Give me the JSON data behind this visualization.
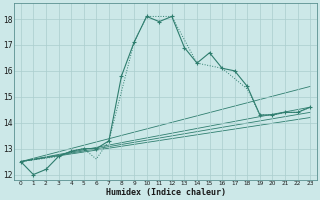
{
  "xlabel": "Humidex (Indice chaleur)",
  "bg_color": "#cce8e8",
  "grid_color": "#aacece",
  "line_color": "#2e7d6e",
  "xlim": [
    -0.5,
    23.5
  ],
  "ylim": [
    11.8,
    18.6
  ],
  "yticks": [
    12,
    13,
    14,
    15,
    16,
    17,
    18
  ],
  "xticks": [
    0,
    1,
    2,
    3,
    4,
    5,
    6,
    7,
    8,
    9,
    10,
    11,
    12,
    13,
    14,
    15,
    16,
    17,
    18,
    19,
    20,
    21,
    22,
    23
  ],
  "series_solid": [
    [
      0,
      12.5
    ],
    [
      1,
      12.0
    ],
    [
      2,
      12.2
    ],
    [
      3,
      12.7
    ],
    [
      4,
      12.9
    ],
    [
      5,
      13.0
    ],
    [
      6,
      13.0
    ],
    [
      7,
      13.3
    ],
    [
      8,
      15.8
    ],
    [
      9,
      17.1
    ],
    [
      10,
      18.1
    ],
    [
      11,
      17.9
    ],
    [
      12,
      18.1
    ],
    [
      13,
      16.9
    ],
    [
      14,
      16.3
    ],
    [
      15,
      16.7
    ],
    [
      16,
      16.1
    ],
    [
      17,
      16.0
    ],
    [
      18,
      15.4
    ],
    [
      19,
      14.3
    ],
    [
      20,
      14.3
    ],
    [
      21,
      14.4
    ],
    [
      22,
      14.4
    ],
    [
      23,
      14.6
    ]
  ],
  "series_dotted": [
    [
      0,
      12.5
    ],
    [
      3,
      12.7
    ],
    [
      4,
      12.9
    ],
    [
      5,
      13.0
    ],
    [
      6,
      12.6
    ],
    [
      7,
      13.3
    ],
    [
      9,
      17.1
    ],
    [
      10,
      18.1
    ],
    [
      12,
      18.1
    ],
    [
      14,
      16.3
    ],
    [
      16,
      16.1
    ],
    [
      18,
      15.3
    ],
    [
      19,
      14.3
    ],
    [
      20,
      14.3
    ],
    [
      21,
      14.4
    ],
    [
      22,
      14.4
    ],
    [
      23,
      14.6
    ]
  ],
  "diag_lines": [
    [
      [
        0,
        12.5
      ],
      [
        23,
        14.6
      ]
    ],
    [
      [
        0,
        12.5
      ],
      [
        23,
        14.4
      ]
    ],
    [
      [
        0,
        12.5
      ],
      [
        23,
        14.2
      ]
    ],
    [
      [
        0,
        12.5
      ],
      [
        23,
        15.4
      ]
    ]
  ]
}
